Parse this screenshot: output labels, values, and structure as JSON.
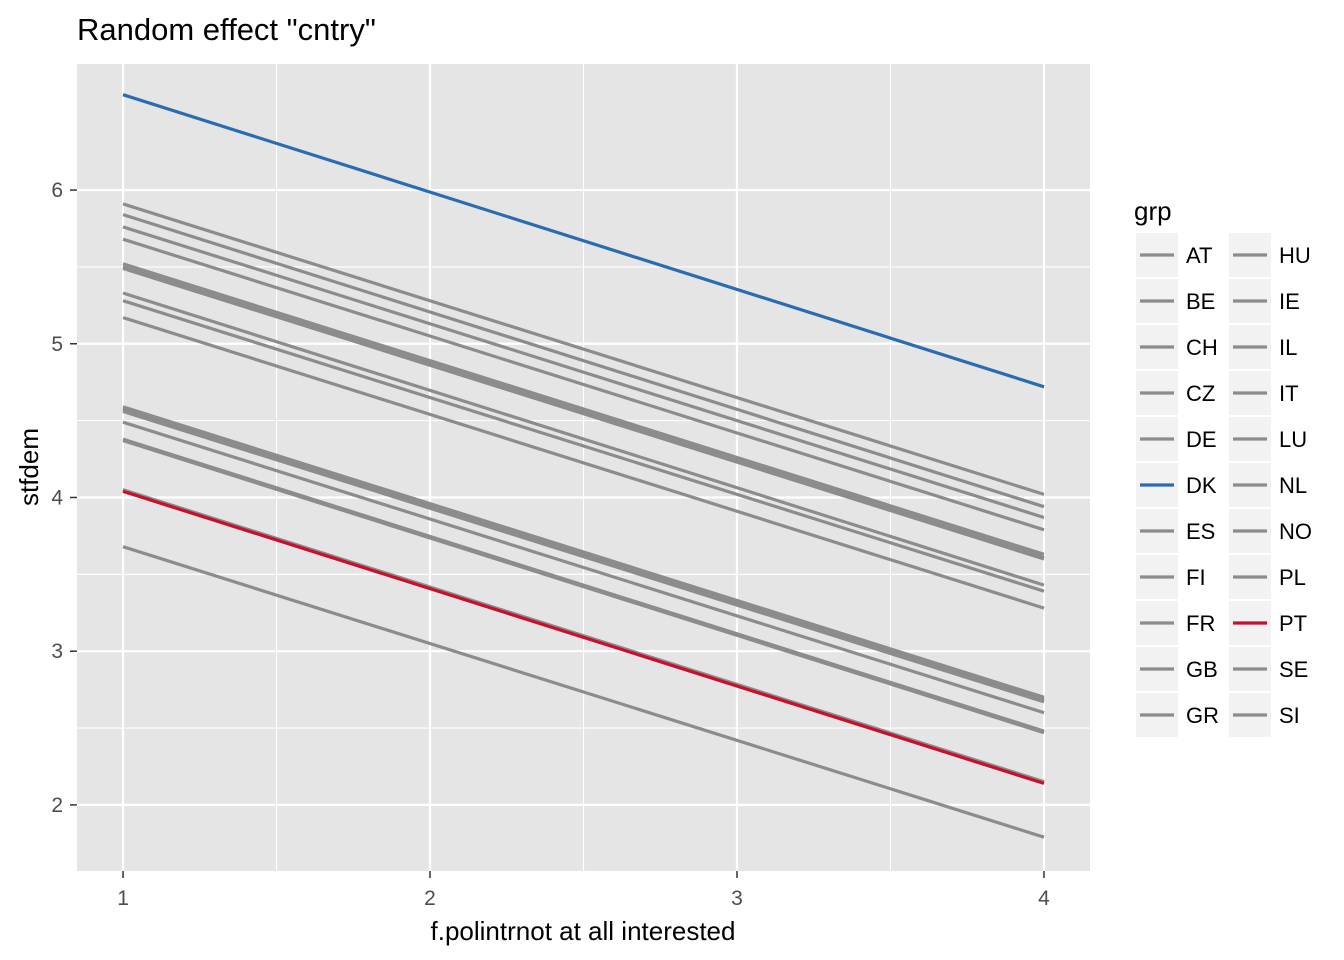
{
  "chart_data": {
    "type": "line",
    "title": "Random effect \"cntry\"",
    "xlabel": "f.polintrnot at all interested",
    "ylabel": "stfdem",
    "xlim": [
      0.85,
      4.15
    ],
    "ylim": [
      1.57,
      6.82
    ],
    "x_ticks": [
      1,
      2,
      3,
      4
    ],
    "y_ticks": [
      2,
      3,
      4,
      5,
      6
    ],
    "grid": true,
    "legend": {
      "title": "grp",
      "position": "right",
      "columns": 2
    },
    "series": [
      {
        "name": "AT",
        "color": "#8c8c8c",
        "x": [
          1,
          4
        ],
        "y": [
          5.52,
          3.63
        ]
      },
      {
        "name": "BE",
        "color": "#8c8c8c",
        "x": [
          1,
          4
        ],
        "y": [
          5.33,
          3.43
        ]
      },
      {
        "name": "CH",
        "color": "#8c8c8c",
        "x": [
          1,
          4
        ],
        "y": [
          5.91,
          4.02
        ]
      },
      {
        "name": "CZ",
        "color": "#8c8c8c",
        "x": [
          1,
          4
        ],
        "y": [
          4.59,
          2.7
        ]
      },
      {
        "name": "DE",
        "color": "#8c8c8c",
        "x": [
          1,
          4
        ],
        "y": [
          5.28,
          3.39
        ]
      },
      {
        "name": "DK",
        "color": "#2b6cb0",
        "x": [
          1,
          4
        ],
        "y": [
          6.62,
          4.72
        ]
      },
      {
        "name": "ES",
        "color": "#8c8c8c",
        "x": [
          1,
          4
        ],
        "y": [
          4.37,
          2.47
        ]
      },
      {
        "name": "FI",
        "color": "#8c8c8c",
        "x": [
          1,
          4
        ],
        "y": [
          5.84,
          3.94
        ]
      },
      {
        "name": "FR",
        "color": "#8c8c8c",
        "x": [
          1,
          4
        ],
        "y": [
          4.56,
          2.67
        ]
      },
      {
        "name": "GB",
        "color": "#8c8c8c",
        "x": [
          1,
          4
        ],
        "y": [
          4.57,
          2.68
        ]
      },
      {
        "name": "GR",
        "color": "#8c8c8c",
        "x": [
          1,
          4
        ],
        "y": [
          4.05,
          2.15
        ]
      },
      {
        "name": "HU",
        "color": "#8c8c8c",
        "x": [
          1,
          4
        ],
        "y": [
          3.68,
          1.79
        ]
      },
      {
        "name": "IE",
        "color": "#8c8c8c",
        "x": [
          1,
          4
        ],
        "y": [
          4.49,
          2.6
        ]
      },
      {
        "name": "IL",
        "color": "#8c8c8c",
        "x": [
          1,
          4
        ],
        "y": [
          5.17,
          3.28
        ]
      },
      {
        "name": "IT",
        "color": "#8c8c8c",
        "x": [
          1,
          4
        ],
        "y": [
          4.38,
          2.48
        ]
      },
      {
        "name": "LU",
        "color": "#8c8c8c",
        "x": [
          1,
          4
        ],
        "y": [
          5.68,
          3.79
        ]
      },
      {
        "name": "NL",
        "color": "#8c8c8c",
        "x": [
          1,
          4
        ],
        "y": [
          5.49,
          3.6
        ]
      },
      {
        "name": "NO",
        "color": "#8c8c8c",
        "x": [
          1,
          4
        ],
        "y": [
          5.76,
          3.87
        ]
      },
      {
        "name": "PL",
        "color": "#8c8c8c",
        "x": [
          1,
          4
        ],
        "y": [
          4.58,
          2.69
        ]
      },
      {
        "name": "PT",
        "color": "#c8102e",
        "x": [
          1,
          4
        ],
        "y": [
          4.04,
          2.14
        ]
      },
      {
        "name": "SE",
        "color": "#8c8c8c",
        "x": [
          1,
          4
        ],
        "y": [
          5.5,
          3.61
        ]
      },
      {
        "name": "SI",
        "color": "#8c8c8c",
        "x": [
          1,
          4
        ],
        "y": [
          4.05,
          2.15
        ]
      }
    ],
    "draw_order": [
      "AT",
      "BE",
      "CH",
      "CZ",
      "DE",
      "ES",
      "FI",
      "FR",
      "GB",
      "GR",
      "HU",
      "IE",
      "IL",
      "IT",
      "LU",
      "NL",
      "NO",
      "PL",
      "SE",
      "SI",
      "PT",
      "DK"
    ],
    "panel_background": "#e5e5e5",
    "grid_color": "#ffffff"
  }
}
